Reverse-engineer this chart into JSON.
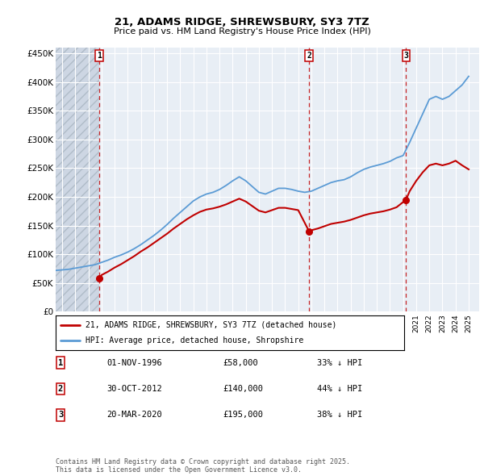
{
  "title": "21, ADAMS RIDGE, SHREWSBURY, SY3 7TZ",
  "subtitle": "Price paid vs. HM Land Registry's House Price Index (HPI)",
  "ylabel_ticks": [
    "£0",
    "£50K",
    "£100K",
    "£150K",
    "£200K",
    "£250K",
    "£300K",
    "£350K",
    "£400K",
    "£450K"
  ],
  "ytick_values": [
    0,
    50000,
    100000,
    150000,
    200000,
    250000,
    300000,
    350000,
    400000,
    450000
  ],
  "ylim": [
    0,
    460000
  ],
  "xlim_start": 1993.5,
  "xlim_end": 2025.8,
  "hpi_color": "#5b9bd5",
  "price_color": "#c00000",
  "hatch_color": "#d0d8e8",
  "plot_bg": "#e8eef5",
  "sale_dates": [
    1996.83,
    2012.83,
    2020.22
  ],
  "sale_prices": [
    58000,
    140000,
    195000
  ],
  "sale_labels": [
    "1",
    "2",
    "3"
  ],
  "legend_label_price": "21, ADAMS RIDGE, SHREWSBURY, SY3 7TZ (detached house)",
  "legend_label_hpi": "HPI: Average price, detached house, Shropshire",
  "table_data": [
    [
      "1",
      "01-NOV-1996",
      "£58,000",
      "33% ↓ HPI"
    ],
    [
      "2",
      "30-OCT-2012",
      "£140,000",
      "44% ↓ HPI"
    ],
    [
      "3",
      "20-MAR-2020",
      "£195,000",
      "38% ↓ HPI"
    ]
  ],
  "footer_text": "Contains HM Land Registry data © Crown copyright and database right 2025.\nThis data is licensed under the Open Government Licence v3.0.",
  "hpi_x": [
    1993.5,
    1994,
    1994.5,
    1995,
    1995.5,
    1996,
    1996.5,
    1997,
    1997.5,
    1998,
    1998.5,
    1999,
    1999.5,
    2000,
    2000.5,
    2001,
    2001.5,
    2002,
    2002.5,
    2003,
    2003.5,
    2004,
    2004.5,
    2005,
    2005.5,
    2006,
    2006.5,
    2007,
    2007.5,
    2008,
    2008.5,
    2009,
    2009.5,
    2010,
    2010.5,
    2011,
    2011.5,
    2012,
    2012.5,
    2013,
    2013.5,
    2014,
    2014.5,
    2015,
    2015.5,
    2016,
    2016.5,
    2017,
    2017.5,
    2018,
    2018.5,
    2019,
    2019.5,
    2020,
    2020.5,
    2021,
    2021.5,
    2022,
    2022.5,
    2023,
    2023.5,
    2024,
    2024.5,
    2025
  ],
  "hpi_y": [
    72000,
    73000,
    74000,
    76000,
    78000,
    80000,
    82000,
    86000,
    90000,
    95000,
    99000,
    104000,
    110000,
    117000,
    125000,
    133000,
    142000,
    152000,
    163000,
    173000,
    183000,
    193000,
    200000,
    205000,
    208000,
    213000,
    220000,
    228000,
    235000,
    228000,
    218000,
    208000,
    205000,
    210000,
    215000,
    215000,
    213000,
    210000,
    208000,
    210000,
    215000,
    220000,
    225000,
    228000,
    230000,
    235000,
    242000,
    248000,
    252000,
    255000,
    258000,
    262000,
    268000,
    272000,
    295000,
    320000,
    345000,
    370000,
    375000,
    370000,
    375000,
    385000,
    395000,
    410000
  ],
  "price_x": [
    1996.83,
    1997,
    1997.5,
    1998,
    1998.5,
    1999,
    1999.5,
    2000,
    2000.5,
    2001,
    2001.5,
    2002,
    2002.5,
    2003,
    2003.5,
    2004,
    2004.5,
    2005,
    2005.5,
    2006,
    2006.5,
    2007,
    2007.5,
    2008,
    2008.5,
    2009,
    2009.5,
    2010,
    2010.5,
    2011,
    2011.5,
    2012,
    2012.83,
    2013,
    2013.5,
    2014,
    2014.5,
    2015,
    2015.5,
    2016,
    2016.5,
    2017,
    2017.5,
    2018,
    2018.5,
    2019,
    2019.5,
    2020.22,
    2020.5,
    2021,
    2021.5,
    2022,
    2022.5,
    2023,
    2023.5,
    2024,
    2024.5,
    2025
  ],
  "price_y": [
    58000,
    64000,
    70000,
    77000,
    83000,
    90000,
    97000,
    105000,
    112000,
    120000,
    128000,
    136000,
    145000,
    153000,
    161000,
    168000,
    174000,
    178000,
    180000,
    183000,
    187000,
    192000,
    197000,
    192000,
    184000,
    176000,
    173000,
    177000,
    181000,
    181000,
    179000,
    177000,
    140000,
    142000,
    145000,
    149000,
    153000,
    155000,
    157000,
    160000,
    164000,
    168000,
    171000,
    173000,
    175000,
    178000,
    182000,
    195000,
    210000,
    228000,
    243000,
    255000,
    258000,
    255000,
    258000,
    263000,
    255000,
    248000
  ]
}
